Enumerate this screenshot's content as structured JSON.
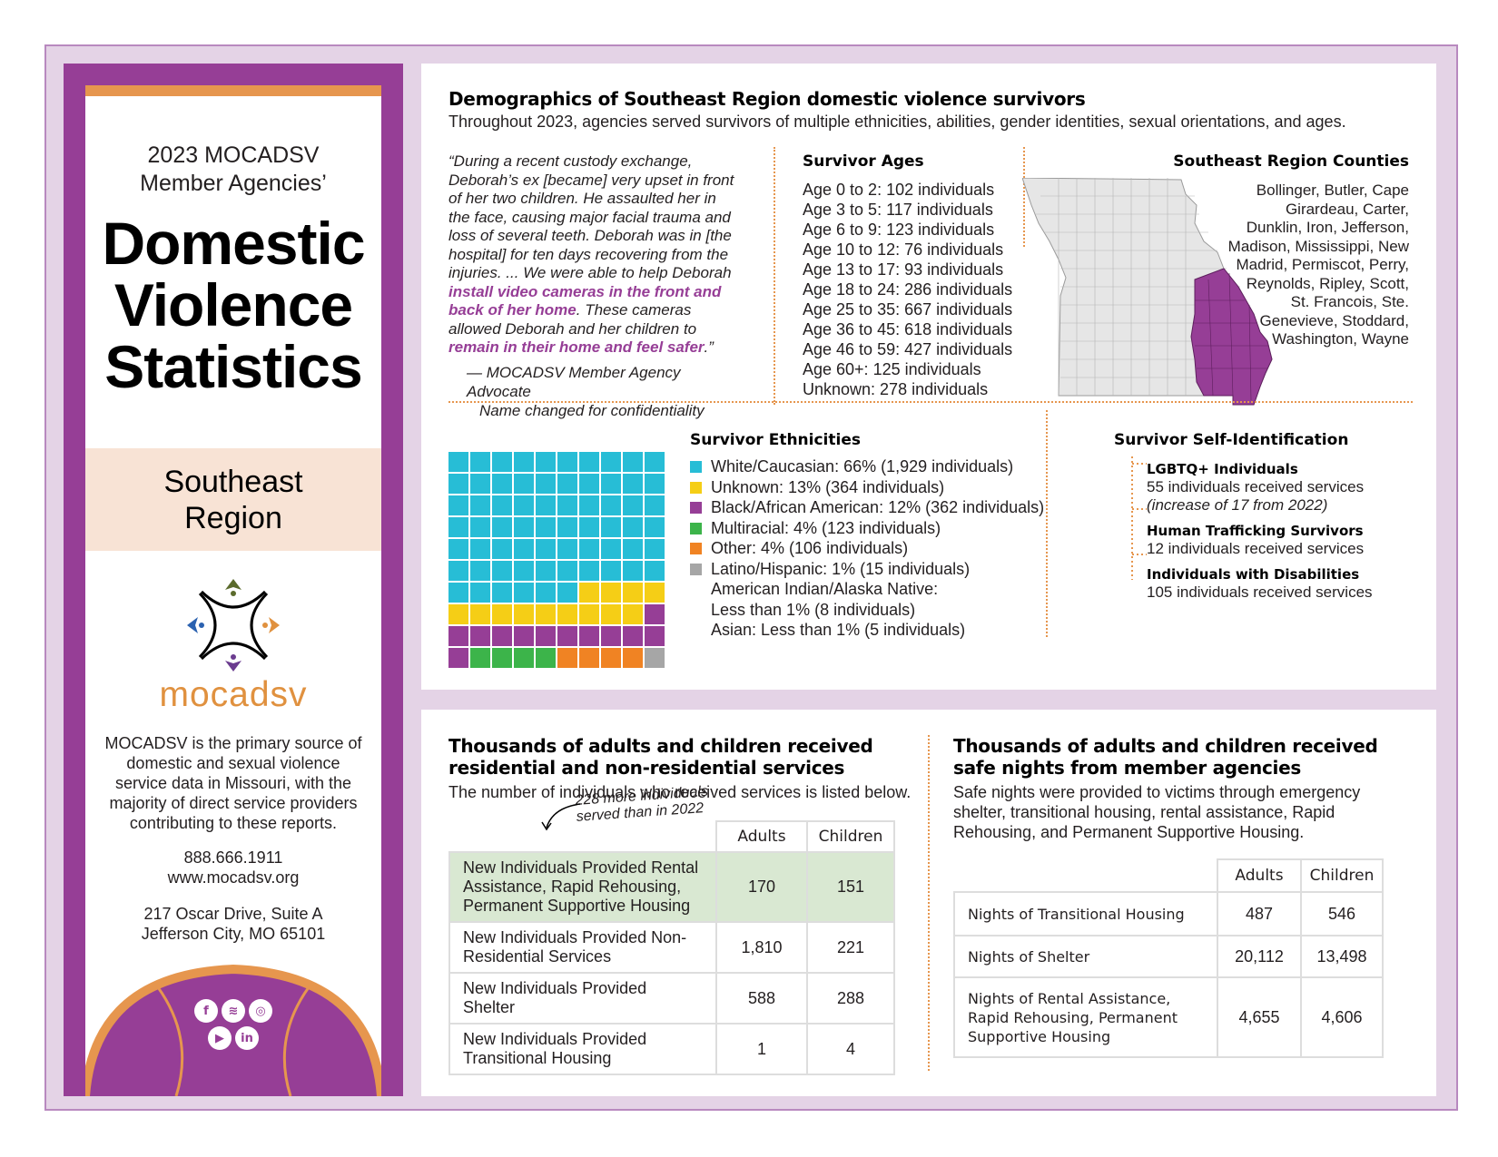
{
  "sidebar": {
    "subtitle": "2023 MOCADSV Member Agencies’",
    "title_lines": [
      "Domestic",
      "Violence",
      "Statistics"
    ],
    "region": "Southeast Region",
    "logo_text": "mocadsv",
    "description": "MOCADSV is the primary source of domestic and sexual violence service data in Missouri, with the majority of direct service providers contributing to these reports.",
    "phone": "888.666.1911",
    "website": "www.mocadsv.org",
    "address_line1": "217 Oscar Drive, Suite A",
    "address_line2": "Jefferson City, MO 65101",
    "social_icons": [
      "facebook-icon",
      "spotify-icon",
      "instagram-icon",
      "youtube-icon",
      "linkedin-icon"
    ]
  },
  "demographics": {
    "title": "Demographics of Southeast Region domestic violence survivors",
    "subtitle": "Throughout 2023, agencies served survivors of multiple ethnicities, abilities, gender identities, sexual orientations, and ages.",
    "quote_a": "“During a recent custody exchange, Deborah’s ex [became] very upset in front of her two children. He assaulted her in the face, causing major facial trauma and loss of several teeth. Deborah was in [the hospital] for ten days recovering from the injuries. ... We were able to help Deborah ",
    "quote_hl1": "install video cameras in the front and back of her home",
    "quote_b": ". These cameras allowed Deborah and her children to ",
    "quote_hl2": "remain in their home and feel safer",
    "quote_c": ".”",
    "quote_attr_1": "— MOCADSV Member Agency Advocate",
    "quote_attr_2": "Name changed for confidentiality",
    "ages_title": "Survivor Ages",
    "ages": [
      "Age 0 to 2: 102 individuals",
      "Age 3 to 5: 117 individuals",
      "Age 6 to 9: 123 individuals",
      "Age 10 to 12: 76 individuals",
      "Age 13 to 17: 93 individuals",
      "Age 18 to 24: 286 individuals",
      "Age 25 to 35: 667 individuals",
      "Age 36 to 45: 618 individuals",
      "Age 46 to 59: 427 individuals",
      "Age 60+: 125 individuals",
      "Unknown: 278 individuals"
    ],
    "counties_title": "Southeast Region Counties",
    "counties": "Bollinger, Butler, Cape Girardeau, Carter, Dunklin, Iron, Jefferson, Madison, Mississippi, New Madrid, Permiscot, Perry, Reynolds, Ripley, Scott, St. Francois, Ste. Genevieve, Stoddard, Washington, Wayne",
    "ethnicities_title": "Survivor Ethnicities",
    "ethnicities": [
      {
        "label": "White/Caucasian: 66% (1,929 individuals)",
        "color": "#27bdd6",
        "squares": 66
      },
      {
        "label": "Unknown: 13% (364 individuals)",
        "color": "#f5ce16",
        "squares": 13
      },
      {
        "label": "Black/African American: 12% (362 individuals)",
        "color": "#963e96",
        "squares": 12
      },
      {
        "label": "Multiracial: 4% (123 individuals)",
        "color": "#3cb44a",
        "squares": 4
      },
      {
        "label": "Other: 4% (106 individuals)",
        "color": "#f08323",
        "squares": 4
      },
      {
        "label": "Latino/Hispanic: 1% (15 individuals)",
        "color": "#a6a6a6",
        "squares": 1
      }
    ],
    "ethnicity_extra_1a": "American Indian/Alaska Native:",
    "ethnicity_extra_1b": "Less than 1% (8 individuals)",
    "ethnicity_extra_2": "Asian: Less than 1% (5 individuals)",
    "selfid_title": "Survivor Self-Identification",
    "selfid": [
      {
        "title": "LGBTQ+ Individuals",
        "line1": "55 individuals received services",
        "line2": "(increase of 17 from 2022)"
      },
      {
        "title": "Human Trafficking Survivors",
        "line1": "12 individuals received services",
        "line2": ""
      },
      {
        "title": "Individuals with Disabilities",
        "line1": "105 individuals received services",
        "line2": ""
      }
    ]
  },
  "services": {
    "title_1": "Thousands of adults and children received",
    "title_2": "residential and non-residential services",
    "subtitle": "The number of individuals who received services is listed below.",
    "annotation": "228 more individuals served than in 2022",
    "col_adults": "Adults",
    "col_children": "Children",
    "rows": [
      {
        "label": "New Individuals Provided Rental Assistance, Rapid Rehousing, Permanent Supportive Housing",
        "adults": "170",
        "children": "151"
      },
      {
        "label": "New Individuals Provided Non-Residential Services",
        "adults": "1,810",
        "children": "221"
      },
      {
        "label": "New Individuals Provided Shelter",
        "adults": "588",
        "children": "288"
      },
      {
        "label": "New Individuals Provided Transitional Housing",
        "adults": "1",
        "children": "4"
      }
    ]
  },
  "nights": {
    "title_1": "Thousands of adults and children received",
    "title_2": "safe nights from member agencies",
    "subtitle": "Safe nights were provided to victims through emergency shelter, transitional housing, rental assistance, Rapid Rehousing, and Permanent Supportive Housing.",
    "col_adults": "Adults",
    "col_children": "Children",
    "rows": [
      {
        "label": "Nights of Transitional Housing",
        "adults": "487",
        "children": "546"
      },
      {
        "label": "Nights of Shelter",
        "adults": "20,112",
        "children": "13,498"
      },
      {
        "label": "Nights of Rental Assistance, Rapid Rehousing, Permanent Supportive Housing",
        "adults": "4,655",
        "children": "4,606"
      }
    ]
  },
  "colors": {
    "purple": "#963e96",
    "orange": "#e6964e",
    "peach": "#f8e3d5",
    "green_highlight": "#d9e8d2"
  }
}
